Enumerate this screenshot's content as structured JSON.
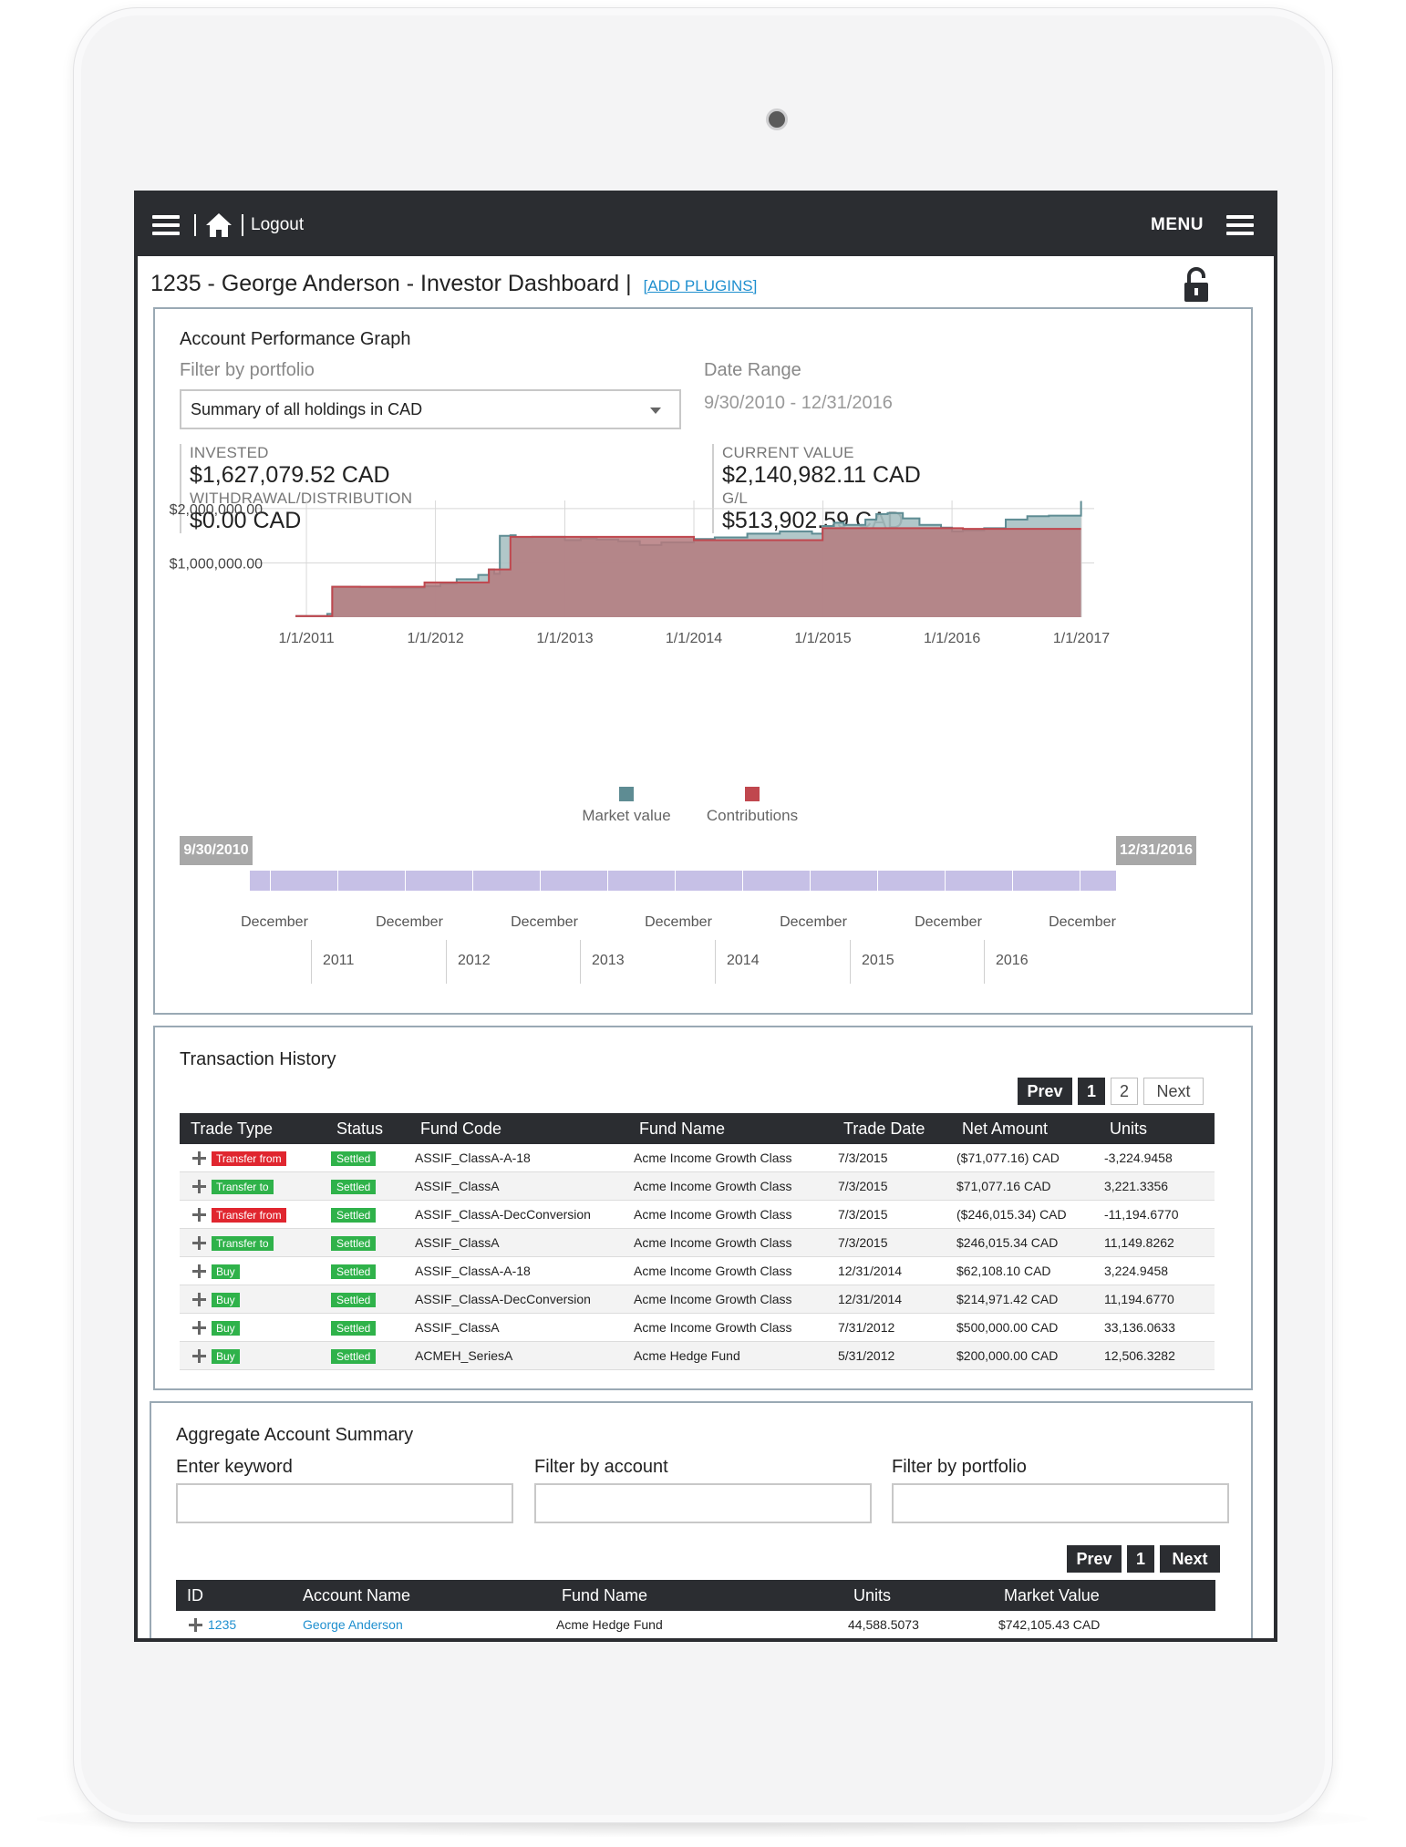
{
  "topbar": {
    "logout_label": "Logout",
    "menu_label": "MENU"
  },
  "page": {
    "title": "1235 - George Anderson - Investor Dashboard |",
    "add_plugins_label": "[ADD PLUGINS]"
  },
  "performance": {
    "title": "Account Performance Graph",
    "filter_label": "Filter by portfolio",
    "filter_value": "Summary of all holdings in CAD",
    "date_range_label": "Date Range",
    "date_range_value": "9/30/2010 - 12/31/2016",
    "invested_label": "INVESTED",
    "invested_value": "$1,627,079.52 CAD",
    "withdrawal_label": "WITHDRAWAL/DISTRIBUTION",
    "withdrawal_value": "$0.00 CAD",
    "current_label": "CURRENT VALUE",
    "current_value": "$2,140,982.11 CAD",
    "gl_label": "G/L",
    "gl_value": "$513,902.59 CAD"
  },
  "chart_data": {
    "type": "area",
    "y_tick_labels": [
      "$2,000,000.00",
      "$1,000,000.00"
    ],
    "y_ticks": [
      2000000,
      1000000
    ],
    "ylim": [
      0,
      2150000
    ],
    "x_tick_labels": [
      "1/1/2011",
      "1/1/2012",
      "1/1/2013",
      "1/1/2014",
      "1/1/2015",
      "1/1/2016",
      "1/1/2017"
    ],
    "xlim": [
      "2010-09-30",
      "2017-01-01"
    ],
    "grid": true,
    "legend_placement": "bottom-center",
    "series": [
      {
        "name": "Market value",
        "color": "#5e8c93",
        "x": [
          "2010-12-01",
          "2011-03-01",
          "2011-03-15",
          "2011-06-01",
          "2011-09-01",
          "2011-12-01",
          "2012-01-15",
          "2012-03-01",
          "2012-05-01",
          "2012-05-31",
          "2012-06-15",
          "2012-07-01",
          "2012-07-31",
          "2012-08-15",
          "2012-10-01",
          "2013-01-01",
          "2013-02-15",
          "2013-04-01",
          "2013-06-01",
          "2013-08-01",
          "2013-10-01",
          "2014-01-01",
          "2014-03-01",
          "2014-06-01",
          "2014-09-01",
          "2014-12-01",
          "2014-12-31",
          "2015-02-01",
          "2015-03-01",
          "2015-05-01",
          "2015-06-01",
          "2015-07-03",
          "2015-08-15",
          "2015-10-01",
          "2015-12-01",
          "2016-01-01",
          "2016-02-01",
          "2016-04-01",
          "2016-06-01",
          "2016-08-01",
          "2016-10-01",
          "2016-12-31"
        ],
        "values": [
          20000,
          60000,
          560000,
          550000,
          540000,
          570000,
          620000,
          700000,
          780000,
          880000,
          800000,
          1500000,
          1510000,
          1470000,
          1480000,
          1420000,
          1450000,
          1430000,
          1400000,
          1330000,
          1380000,
          1440000,
          1470000,
          1540000,
          1580000,
          1540000,
          1680000,
          1740000,
          1700000,
          1800000,
          1900000,
          1920000,
          1820000,
          1700000,
          1650000,
          1580000,
          1600000,
          1640000,
          1800000,
          1860000,
          1870000,
          2140000
        ]
      },
      {
        "name": "Contributions",
        "color": "#c0474e",
        "x": [
          "2010-12-01",
          "2011-03-15",
          "2011-08-01",
          "2011-12-01",
          "2012-05-31",
          "2012-07-31",
          "2013-05-01",
          "2014-01-01",
          "2014-12-31",
          "2016-01-01",
          "2016-02-01",
          "2016-12-31"
        ],
        "values": [
          20000,
          560000,
          560000,
          640000,
          880000,
          1480000,
          1480000,
          1420000,
          1640000,
          1640000,
          1627080,
          1627080
        ]
      }
    ]
  },
  "date_slider": {
    "start_label": "9/30/2010",
    "end_label": "12/31/2016",
    "month_labels": [
      "December",
      "December",
      "December",
      "December",
      "December",
      "December",
      "December"
    ],
    "year_labels": [
      "2011",
      "2012",
      "2013",
      "2014",
      "2015",
      "2016"
    ]
  },
  "transactions": {
    "title": "Transaction History",
    "pager": {
      "prev": "Prev",
      "page1": "1",
      "page2": "2",
      "next": "Next"
    },
    "columns": [
      "Trade Type",
      "Status",
      "Fund Code",
      "Fund Name",
      "Trade Date",
      "Net Amount",
      "Units"
    ],
    "rows": [
      {
        "type": "Transfer from",
        "type_color": "red",
        "status": "Settled",
        "fund_code": "ASSIF_ClassA-A-18",
        "fund_name": "Acme Income Growth Class",
        "date": "7/3/2015",
        "amount": "($71,077.16) CAD",
        "units": "-3,224.9458"
      },
      {
        "type": "Transfer to",
        "type_color": "green",
        "status": "Settled",
        "fund_code": "ASSIF_ClassA",
        "fund_name": "Acme Income Growth Class",
        "date": "7/3/2015",
        "amount": "$71,077.16 CAD",
        "units": "3,221.3356"
      },
      {
        "type": "Transfer from",
        "type_color": "red",
        "status": "Settled",
        "fund_code": "ASSIF_ClassA-DecConversion",
        "fund_name": "Acme Income Growth Class",
        "date": "7/3/2015",
        "amount": "($246,015.34) CAD",
        "units": "-11,194.6770"
      },
      {
        "type": "Transfer to",
        "type_color": "green",
        "status": "Settled",
        "fund_code": "ASSIF_ClassA",
        "fund_name": "Acme Income Growth Class",
        "date": "7/3/2015",
        "amount": "$246,015.34 CAD",
        "units": "11,149.8262"
      },
      {
        "type": "Buy",
        "type_color": "green",
        "status": "Settled",
        "fund_code": "ASSIF_ClassA-A-18",
        "fund_name": "Acme Income Growth Class",
        "date": "12/31/2014",
        "amount": "$62,108.10 CAD",
        "units": "3,224.9458"
      },
      {
        "type": "Buy",
        "type_color": "green",
        "status": "Settled",
        "fund_code": "ASSIF_ClassA-DecConversion",
        "fund_name": "Acme Income Growth Class",
        "date": "12/31/2014",
        "amount": "$214,971.42 CAD",
        "units": "11,194.6770"
      },
      {
        "type": "Buy",
        "type_color": "green",
        "status": "Settled",
        "fund_code": "ASSIF_ClassA",
        "fund_name": "Acme Income Growth Class",
        "date": "7/31/2012",
        "amount": "$500,000.00 CAD",
        "units": "33,136.0633"
      },
      {
        "type": "Buy",
        "type_color": "green",
        "status": "Settled",
        "fund_code": "ACMEH_SeriesA",
        "fund_name": "Acme Hedge Fund",
        "date": "5/31/2012",
        "amount": "$200,000.00 CAD",
        "units": "12,506.3282"
      }
    ]
  },
  "aggregate": {
    "title": "Aggregate Account Summary",
    "keyword_label": "Enter keyword",
    "account_label": "Filter by account",
    "portfolio_label": "Filter by portfolio",
    "pager": {
      "prev": "Prev",
      "page1": "1",
      "next": "Next"
    },
    "columns": [
      "ID",
      "Account Name",
      "Fund Name",
      "Units",
      "Market Value"
    ],
    "rows": [
      {
        "id": "1235",
        "account_name": "George Anderson",
        "fund_name": "Acme Hedge Fund",
        "units": "44,588.5073",
        "market_value": "$742,105.43 CAD"
      }
    ]
  }
}
